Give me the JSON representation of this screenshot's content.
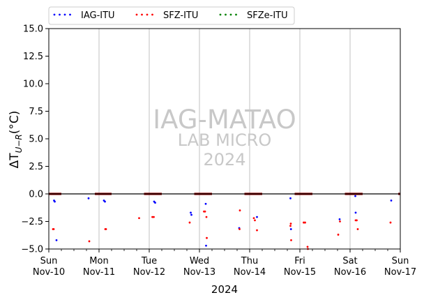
{
  "chart_data": {
    "type": "scatter",
    "ylabel": "ΔT_{U−R}(°C)",
    "xlabel": "2024",
    "ylim": [
      -5.0,
      15.0
    ],
    "xlim": [
      "2024-11-10",
      "2024-11-17"
    ],
    "yticks": [
      -5.0,
      -2.5,
      0.0,
      2.5,
      5.0,
      7.5,
      10.0,
      12.5,
      15.0
    ],
    "ytick_labels": [
      "−5.0",
      "−2.5",
      "0.0",
      "2.5",
      "5.0",
      "7.5",
      "10.0",
      "12.5",
      "15.0"
    ],
    "xticks": [
      {
        "date": "2024-11-10",
        "day": "Sun",
        "label": "Nov-10"
      },
      {
        "date": "2024-11-11",
        "day": "Mon",
        "label": "Nov-11"
      },
      {
        "date": "2024-11-12",
        "day": "Tue",
        "label": "Nov-12"
      },
      {
        "date": "2024-11-13",
        "day": "Wed",
        "label": "Nov-13"
      },
      {
        "date": "2024-11-14",
        "day": "Thu",
        "label": "Nov-14"
      },
      {
        "date": "2024-11-15",
        "day": "Fri",
        "label": "Nov-15"
      },
      {
        "date": "2024-11-16",
        "day": "Sat",
        "label": "Nov-16"
      },
      {
        "date": "2024-11-17",
        "day": "Sun",
        "label": "Nov-17"
      }
    ],
    "grid": "vertical",
    "zero_line": 0,
    "legend_position": "top-left",
    "watermark": [
      "IAG-MATAO",
      "LAB MICRO",
      "2024"
    ],
    "series": [
      {
        "name": "IAG-ITU",
        "color": "#0000ff",
        "points": [
          [
            "2024-11-10 02:30",
            -0.6
          ],
          [
            "2024-11-10 02:50",
            -0.7
          ],
          [
            "2024-11-10 03:40",
            -4.2
          ],
          [
            "2024-11-10 19:00",
            -0.4
          ],
          [
            "2024-11-11 02:20",
            -0.6
          ],
          [
            "2024-11-11 02:50",
            -0.7
          ],
          [
            "2024-11-12 02:20",
            -0.7
          ],
          [
            "2024-11-12 02:50",
            -0.8
          ],
          [
            "2024-11-12 19:50",
            -1.7
          ],
          [
            "2024-11-12 20:10",
            -1.9
          ],
          [
            "2024-11-13 03:00",
            -0.9
          ],
          [
            "2024-11-13 03:10",
            -4.7
          ],
          [
            "2024-11-13 19:00",
            -3.1
          ],
          [
            "2024-11-14 03:30",
            -2.1
          ],
          [
            "2024-11-14 19:30",
            -0.4
          ],
          [
            "2024-11-14 19:45",
            -3.2
          ],
          [
            "2024-11-15 19:00",
            -2.3
          ],
          [
            "2024-11-16 02:40",
            -1.7
          ],
          [
            "2024-11-16 02:30",
            -0.2
          ],
          [
            "2024-11-16 19:40",
            -0.6
          ]
        ]
      },
      {
        "name": "SFZ-ITU",
        "color": "#ff0000",
        "points": [
          [
            "2024-11-10 02:00",
            -3.2
          ],
          [
            "2024-11-10 02:20",
            -3.2
          ],
          [
            "2024-11-10 19:20",
            -4.3
          ],
          [
            "2024-11-11 03:00",
            -3.2
          ],
          [
            "2024-11-11 03:20",
            -3.2
          ],
          [
            "2024-11-11 19:10",
            -2.2
          ],
          [
            "2024-11-12 01:30",
            -2.1
          ],
          [
            "2024-11-12 02:10",
            -2.1
          ],
          [
            "2024-11-12 19:20",
            -2.6
          ],
          [
            "2024-11-13 02:10",
            -1.6
          ],
          [
            "2024-11-13 02:40",
            -1.6
          ],
          [
            "2024-11-13 03:20",
            -2.1
          ],
          [
            "2024-11-13 03:30",
            -4.0
          ],
          [
            "2024-11-13 19:10",
            -3.2
          ],
          [
            "2024-11-13 19:20",
            -1.5
          ],
          [
            "2024-11-14 02:00",
            -2.2
          ],
          [
            "2024-11-14 02:30",
            -2.4
          ],
          [
            "2024-11-14 03:30",
            -3.3
          ],
          [
            "2024-11-14 19:40",
            -2.7
          ],
          [
            "2024-11-14 19:50",
            -4.2
          ],
          [
            "2024-11-14 19:30",
            -2.9
          ],
          [
            "2024-11-15 01:50",
            -2.6
          ],
          [
            "2024-11-15 02:30",
            -2.6
          ],
          [
            "2024-11-15 03:40",
            -4.8
          ],
          [
            "2024-11-15 03:50",
            -5.0
          ],
          [
            "2024-11-15 18:20",
            -3.7
          ],
          [
            "2024-11-15 19:10",
            -2.5
          ],
          [
            "2024-11-16 02:40",
            -2.4
          ],
          [
            "2024-11-16 03:10",
            -2.4
          ],
          [
            "2024-11-16 03:40",
            -3.2
          ],
          [
            "2024-11-16 19:20",
            -2.6
          ]
        ]
      },
      {
        "name": "SFZe-ITU",
        "color": "#008000",
        "points": []
      }
    ],
    "zero_bands": {
      "color": "#8b0000",
      "ranges": [
        [
          "2024-11-10 00:00",
          "2024-11-10 06:00"
        ],
        [
          "2024-11-10 22:00",
          "2024-11-11 06:00"
        ],
        [
          "2024-11-11 21:30",
          "2024-11-12 06:00"
        ],
        [
          "2024-11-12 21:30",
          "2024-11-13 06:00"
        ],
        [
          "2024-11-13 21:30",
          "2024-11-14 06:00"
        ],
        [
          "2024-11-14 21:30",
          "2024-11-15 06:00"
        ],
        [
          "2024-11-15 21:30",
          "2024-11-16 06:00"
        ],
        [
          "2024-11-16 23:00",
          "2024-11-17 00:00"
        ]
      ]
    }
  }
}
